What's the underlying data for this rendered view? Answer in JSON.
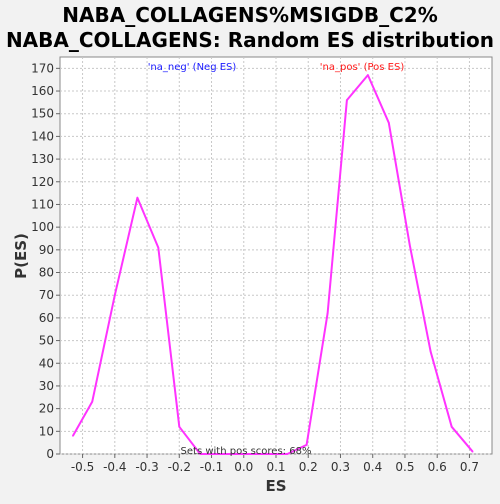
{
  "chart_data": {
    "type": "line",
    "title_line1": "NABA_COLLAGENS%MSIGDB_C2%",
    "title_line2": "NABA_COLLAGENS: Random ES distribution",
    "xlabel": "ES",
    "ylabel": "P(ES)",
    "xlim": [
      -0.57,
      0.77
    ],
    "ylim": [
      0,
      175
    ],
    "x_ticks": [
      -0.5,
      -0.4,
      -0.3,
      -0.2,
      -0.1,
      0.0,
      0.1,
      0.2,
      0.3,
      0.4,
      0.5,
      0.6,
      0.7
    ],
    "x_tick_labels": [
      "-0.5",
      "-0.4",
      "-0.3",
      "-0.2",
      "-0.1",
      "0.0",
      "0.1",
      "0.2",
      "0.3",
      "0.4",
      "0.5",
      "0.6",
      "0.7"
    ],
    "y_ticks": [
      0,
      10,
      20,
      30,
      40,
      50,
      60,
      70,
      80,
      90,
      100,
      110,
      120,
      130,
      140,
      150,
      160,
      170
    ],
    "grid": true,
    "series": [
      {
        "color": "#ff33ff",
        "x": [
          -0.53,
          -0.47,
          -0.4,
          -0.33,
          -0.265,
          -0.2,
          -0.135,
          -0.07,
          0.0,
          0.07,
          0.135,
          0.195,
          0.26,
          0.32,
          0.385,
          0.45,
          0.515,
          0.58,
          0.645,
          0.71
        ],
        "y": [
          8,
          23,
          70,
          113,
          91,
          12,
          0,
          0,
          0,
          0,
          0,
          4,
          62,
          156,
          167,
          146,
          92,
          45,
          12,
          1
        ]
      }
    ],
    "annotations": [
      {
        "text": "'na_neg' (Neg ES)",
        "color": "#1a1aff"
      },
      {
        "text": "'na_pos' (Pos ES)",
        "color": "#ff1a1a"
      }
    ],
    "footer": "Sets with pos scores: 68%"
  }
}
